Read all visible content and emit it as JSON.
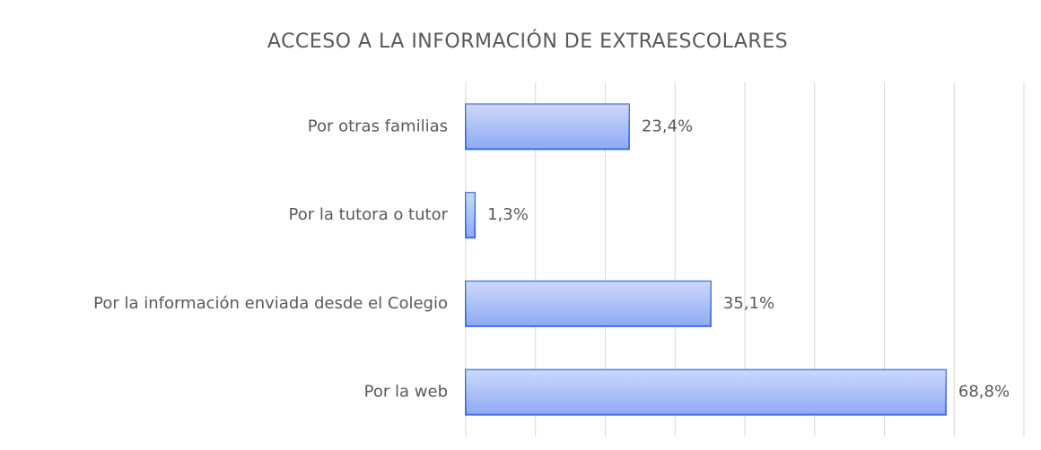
{
  "chart_data": {
    "type": "bar",
    "orientation": "horizontal",
    "title": "ACCESO A LA INFORMACIÓN DE EXTRAESCOLARES",
    "categories": [
      "Por otras familias",
      "Por la tutora o tutor",
      "Por la información enviada desde el Colegio",
      "Por la web"
    ],
    "values": [
      23.4,
      1.3,
      35.1,
      68.8
    ],
    "value_labels": [
      "23,4%",
      "1,3%",
      "35,1%",
      "68,8%"
    ],
    "color": "#8eaaf5",
    "xlim": [
      0,
      80
    ],
    "xticks": [
      0,
      10,
      20,
      30,
      40,
      50,
      60,
      70,
      80
    ],
    "grid": true
  }
}
